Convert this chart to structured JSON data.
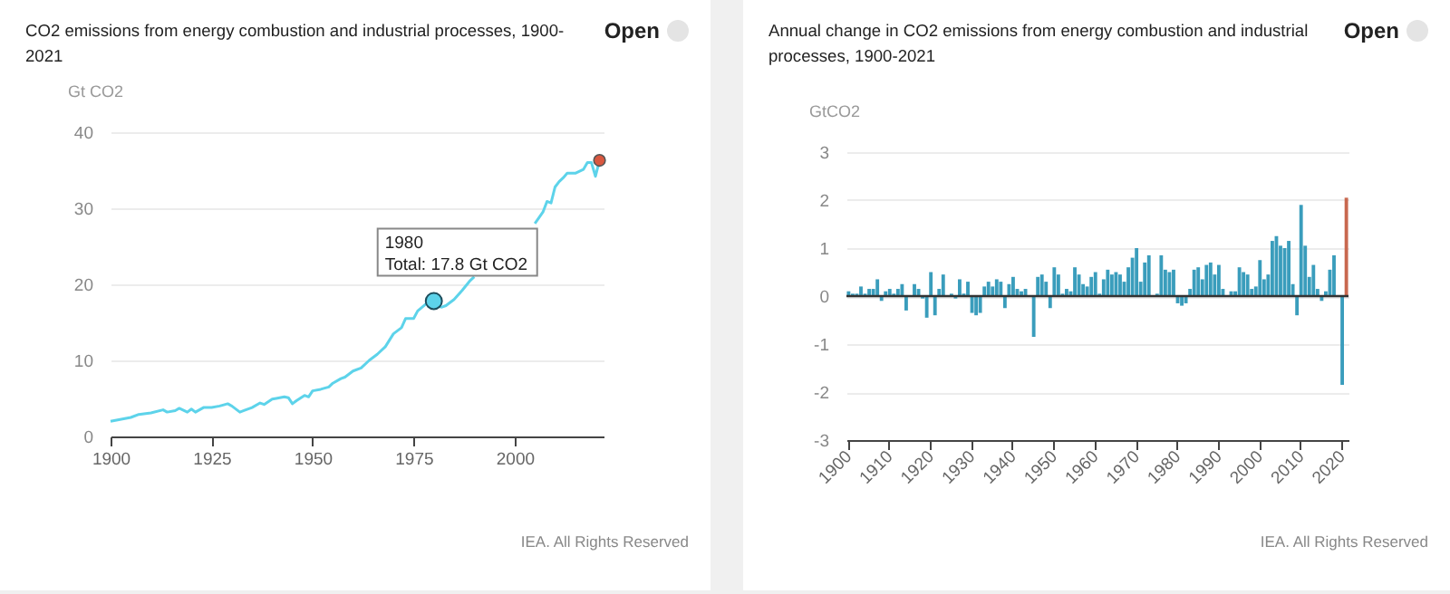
{
  "chart_data": [
    {
      "type": "line",
      "title": "CO2 emissions from energy combustion and industrial processes, 1900-2021",
      "ylabel": "Gt CO2",
      "xlim": [
        1900,
        2022
      ],
      "xticks": [
        1900,
        1925,
        1950,
        1975,
        2000
      ],
      "ylim": [
        0,
        40
      ],
      "yticks": [
        0,
        10,
        20,
        30,
        40
      ],
      "grid": "y",
      "series": [
        {
          "type": "line",
          "color": "#5dd3ea",
          "x": [
            1900,
            1905,
            1907,
            1910,
            1913,
            1914,
            1916,
            1917,
            1919,
            1920,
            1921,
            1923,
            1925,
            1927,
            1929,
            1930,
            1932,
            1933,
            1935,
            1937,
            1938,
            1940,
            1941,
            1943,
            1944,
            1945,
            1946,
            1948,
            1949,
            1950,
            1952,
            1954,
            1955,
            1957,
            1958,
            1960,
            1962,
            1964,
            1966,
            1968,
            1970,
            1972,
            1973,
            1975,
            1976,
            1978,
            1979,
            1980,
            1981,
            1982,
            1983,
            1985,
            1987,
            1989,
            1990,
            1991,
            2004,
            2005,
            2007,
            2008,
            2009,
            2010,
            2011,
            2012,
            2013,
            2015,
            2017,
            2018,
            2019,
            2020,
            2021
          ],
          "values": [
            2.0,
            2.5,
            2.9,
            3.1,
            3.5,
            3.2,
            3.4,
            3.7,
            3.2,
            3.6,
            3.2,
            3.8,
            3.8,
            4.0,
            4.3,
            4.0,
            3.2,
            3.4,
            3.8,
            4.4,
            4.2,
            4.9,
            5.0,
            5.2,
            5.1,
            4.3,
            4.7,
            5.4,
            5.2,
            6.0,
            6.2,
            6.5,
            7.0,
            7.6,
            7.8,
            8.6,
            9.0,
            10.0,
            10.8,
            11.8,
            13.5,
            14.3,
            15.5,
            15.5,
            16.5,
            17.4,
            18.2,
            17.8,
            17.1,
            17.0,
            17.2,
            18.0,
            19.2,
            20.5,
            21.0,
            null,
            null,
            28.0,
            29.5,
            30.9,
            30.7,
            32.8,
            33.5,
            34.0,
            34.6,
            34.6,
            35.1,
            36.0,
            36.0,
            34.2,
            36.3
          ]
        },
        {
          "type": "scatter",
          "color": "#d9573f",
          "x": [
            2021
          ],
          "values": [
            36.3
          ]
        }
      ],
      "annotations": [
        {
          "text": "1980\nTotal: 17.8 Gt CO2",
          "x": 1980,
          "y": 17.8
        },
        "IEA. All Rights Reserved",
        "Open"
      ]
    },
    {
      "type": "bar",
      "title": "Annual change in CO2 emissions from energy combustion and industrial processes, 1900-2021",
      "ylabel": "GtCO2",
      "ylim": [
        -3,
        3
      ],
      "yticks": [
        -3,
        -2,
        -1,
        0,
        1,
        2,
        3
      ],
      "grid": "y",
      "categories": [
        "1900",
        null,
        null,
        null,
        null,
        null,
        null,
        null,
        null,
        null,
        "1910",
        null,
        null,
        null,
        null,
        null,
        null,
        null,
        null,
        null,
        "1920",
        null,
        null,
        null,
        null,
        null,
        null,
        null,
        null,
        null,
        "1930",
        null,
        null,
        null,
        null,
        null,
        null,
        null,
        null,
        null,
        "1940",
        null,
        null,
        null,
        null,
        null,
        null,
        null,
        null,
        null,
        "1950",
        null,
        null,
        null,
        null,
        null,
        null,
        null,
        null,
        null,
        "1960",
        null,
        null,
        null,
        null,
        null,
        null,
        null,
        null,
        null,
        "1970",
        null,
        null,
        null,
        null,
        null,
        null,
        null,
        null,
        null,
        "1980",
        null,
        null,
        null,
        null,
        null,
        null,
        null,
        null,
        null,
        "1990",
        null,
        null,
        null,
        null,
        null,
        null,
        null,
        null,
        null,
        "2000",
        null,
        null,
        null,
        null,
        null,
        null,
        null,
        null,
        null,
        "2010",
        null,
        null,
        null,
        null,
        null,
        null,
        null,
        null,
        null,
        "2020",
        null
      ],
      "values": [
        0.1,
        0.05,
        0.05,
        0.2,
        0.05,
        0.15,
        0.15,
        0.35,
        -0.1,
        0.1,
        0.15,
        0.05,
        0.15,
        0.25,
        -0.3,
        null,
        0.25,
        0.15,
        -0.05,
        -0.45,
        0.5,
        -0.4,
        0.15,
        0.45,
        0.0,
        0.05,
        -0.05,
        0.35,
        0.05,
        0.3,
        -0.35,
        -0.4,
        -0.35,
        0.2,
        0.3,
        0.2,
        0.35,
        0.3,
        -0.25,
        0.25,
        0.4,
        0.15,
        0.1,
        0.15,
        0.0,
        -0.85,
        0.4,
        0.45,
        0.3,
        -0.25,
        0.6,
        0.45,
        0.05,
        0.15,
        0.1,
        0.6,
        0.45,
        0.25,
        0.2,
        0.4,
        0.5,
        0.05,
        0.35,
        0.55,
        0.45,
        0.5,
        0.45,
        0.3,
        0.6,
        0.8,
        1.0,
        0.3,
        0.7,
        0.85,
        null,
        0.05,
        0.85,
        0.55,
        0.5,
        0.55,
        -0.15,
        -0.2,
        -0.15,
        0.15,
        0.55,
        0.6,
        0.35,
        0.65,
        0.7,
        0.45,
        0.65,
        0.15,
        null,
        0.1,
        0.1,
        0.6,
        0.5,
        0.45,
        0.15,
        0.2,
        0.75,
        0.35,
        0.45,
        1.15,
        1.25,
        1.05,
        1.0,
        1.15,
        0.25,
        -0.4,
        1.9,
        1.05,
        0.4,
        0.65,
        0.15,
        -0.1,
        0.1,
        0.55,
        0.85,
        null,
        -1.85,
        2.05
      ],
      "colors": [
        "#3a9dbc",
        "#3a9dbc",
        "#3a9dbc",
        "#3a9dbc",
        "#3a9dbc",
        "#3a9dbc",
        "#3a9dbc",
        "#3a9dbc",
        "#3a9dbc",
        "#3a9dbc",
        "#3a9dbc",
        "#3a9dbc",
        "#3a9dbc",
        "#3a9dbc",
        "#3a9dbc",
        "#3a9dbc",
        "#3a9dbc",
        "#3a9dbc",
        "#3a9dbc",
        "#3a9dbc",
        "#3a9dbc",
        "#3a9dbc",
        "#3a9dbc",
        "#3a9dbc",
        "#3a9dbc",
        "#3a9dbc",
        "#3a9dbc",
        "#3a9dbc",
        "#3a9dbc",
        "#3a9dbc",
        "#3a9dbc",
        "#3a9dbc",
        "#3a9dbc",
        "#3a9dbc",
        "#3a9dbc",
        "#3a9dbc",
        "#3a9dbc",
        "#3a9dbc",
        "#3a9dbc",
        "#3a9dbc",
        "#3a9dbc",
        "#3a9dbc",
        "#3a9dbc",
        "#3a9dbc",
        "#3a9dbc",
        "#3a9dbc",
        "#3a9dbc",
        "#3a9dbc",
        "#3a9dbc",
        "#3a9dbc",
        "#3a9dbc",
        "#3a9dbc",
        "#3a9dbc",
        "#3a9dbc",
        "#3a9dbc",
        "#3a9dbc",
        "#3a9dbc",
        "#3a9dbc",
        "#3a9dbc",
        "#3a9dbc",
        "#3a9dbc",
        "#3a9dbc",
        "#3a9dbc",
        "#3a9dbc",
        "#3a9dbc",
        "#3a9dbc",
        "#3a9dbc",
        "#3a9dbc",
        "#3a9dbc",
        "#3a9dbc",
        "#3a9dbc",
        "#3a9dbc",
        "#3a9dbc",
        "#3a9dbc",
        "#3a9dbc",
        "#3a9dbc",
        "#3a9dbc",
        "#3a9dbc",
        "#3a9dbc",
        "#3a9dbc",
        "#3a9dbc",
        "#3a9dbc",
        "#3a9dbc",
        "#3a9dbc",
        "#3a9dbc",
        "#3a9dbc",
        "#3a9dbc",
        "#3a9dbc",
        "#3a9dbc",
        "#3a9dbc",
        "#3a9dbc",
        "#3a9dbc",
        "#3a9dbc",
        "#3a9dbc",
        "#3a9dbc",
        "#3a9dbc",
        "#3a9dbc",
        "#3a9dbc",
        "#3a9dbc",
        "#3a9dbc",
        "#3a9dbc",
        "#3a9dbc",
        "#3a9dbc",
        "#3a9dbc",
        "#3a9dbc",
        "#3a9dbc",
        "#3a9dbc",
        "#3a9dbc",
        "#3a9dbc",
        "#3a9dbc",
        "#3a9dbc",
        "#3a9dbc",
        "#3a9dbc",
        "#3a9dbc",
        "#3a9dbc",
        "#3a9dbc",
        "#3a9dbc",
        "#3a9dbc",
        "#3a9dbc",
        "#3a9dbc",
        "#3a9dbc",
        "#c8684f"
      ],
      "ref_lines": [
        {
          "axis": "y",
          "value": 0,
          "color": "#333333"
        }
      ],
      "annotations": [
        "IEA. All Rights Reserved",
        "Open"
      ]
    }
  ]
}
